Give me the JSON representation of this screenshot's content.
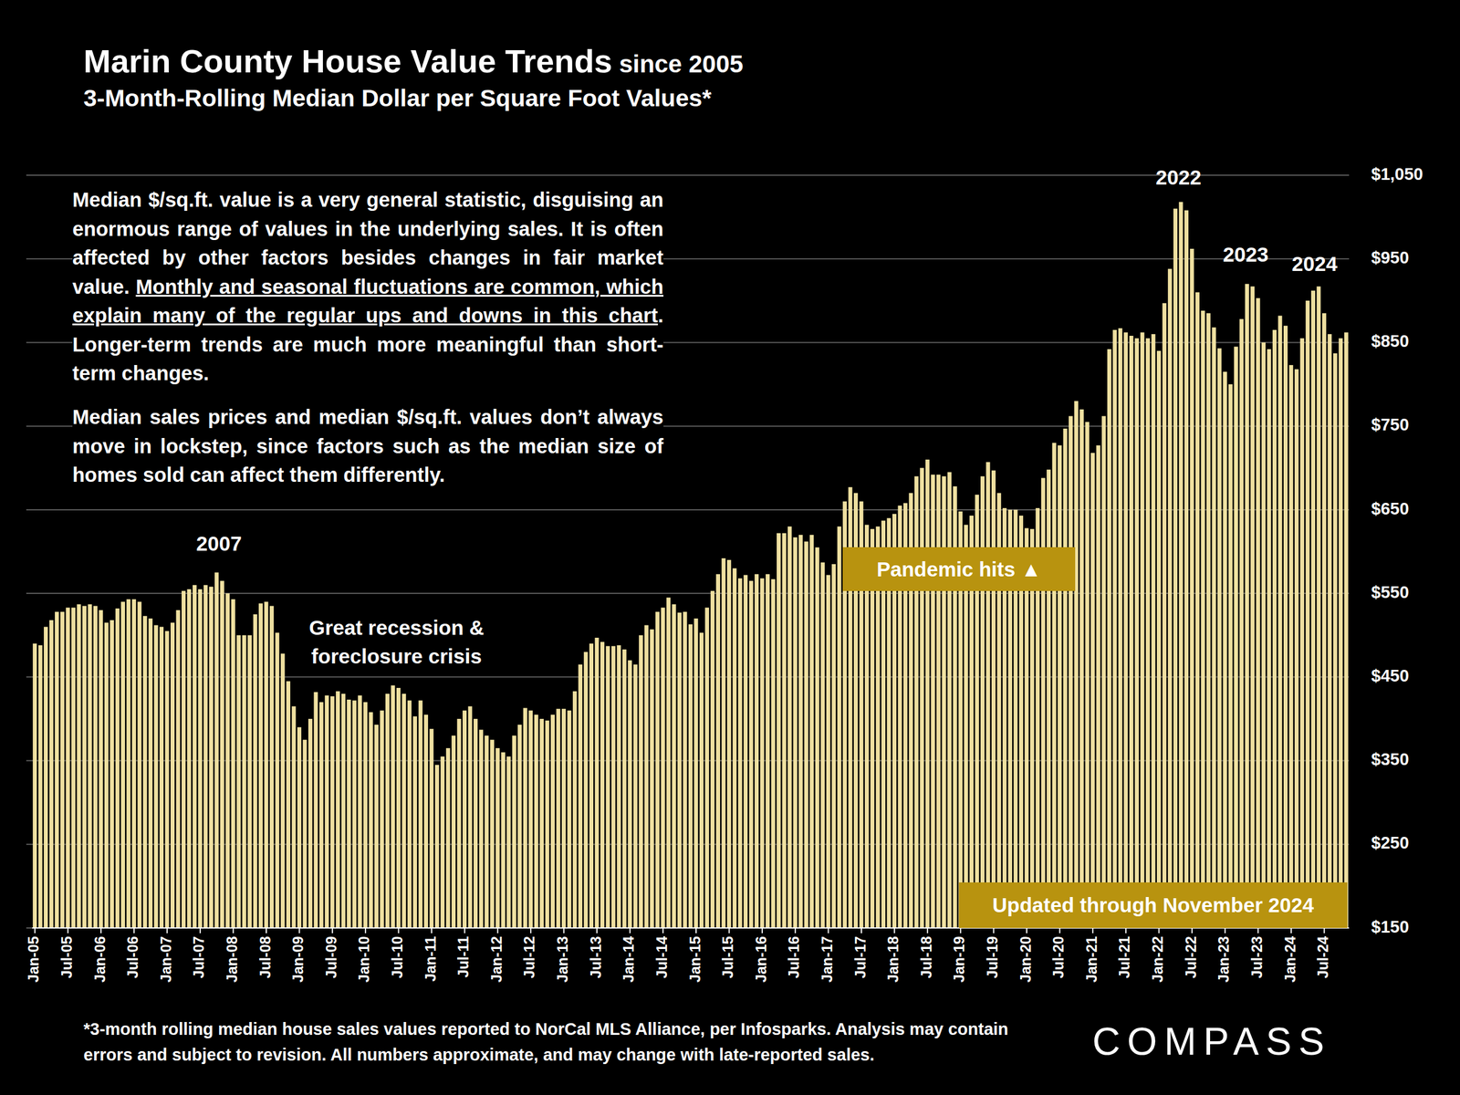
{
  "chart_data": {
    "type": "bar",
    "title": [
      "Marin County House Value Trends",
      " since 2005"
    ],
    "subtitle": "3-Month-Rolling Median Dollar per Square Foot Values*",
    "categories": [
      "Jan-05",
      null,
      null,
      null,
      null,
      null,
      "Jul-05",
      null,
      null,
      null,
      null,
      null,
      "Jan-06",
      null,
      null,
      null,
      null,
      null,
      "Jul-06",
      null,
      null,
      null,
      null,
      null,
      "Jan-07",
      null,
      null,
      null,
      null,
      null,
      "Jul-07",
      null,
      null,
      null,
      null,
      null,
      "Jan-08",
      null,
      null,
      null,
      null,
      null,
      "Jul-08",
      null,
      null,
      null,
      null,
      null,
      "Jan-09",
      null,
      null,
      null,
      null,
      null,
      "Jul-09",
      null,
      null,
      null,
      null,
      null,
      "Jan-10",
      null,
      null,
      null,
      null,
      null,
      "Jul-10",
      null,
      null,
      null,
      null,
      null,
      "Jan-11",
      null,
      null,
      null,
      null,
      null,
      "Jul-11",
      null,
      null,
      null,
      null,
      null,
      "Jan-12",
      null,
      null,
      null,
      null,
      null,
      "Jul-12",
      null,
      null,
      null,
      null,
      null,
      "Jan-13",
      null,
      null,
      null,
      null,
      null,
      "Jul-13",
      null,
      null,
      null,
      null,
      null,
      "Jan-14",
      null,
      null,
      null,
      null,
      null,
      "Jul-14",
      null,
      null,
      null,
      null,
      null,
      "Jan-15",
      null,
      null,
      null,
      null,
      null,
      "Jul-15",
      null,
      null,
      null,
      null,
      null,
      "Jan-16",
      null,
      null,
      null,
      null,
      null,
      "Jul-16",
      null,
      null,
      null,
      null,
      null,
      "Jan-17",
      null,
      null,
      null,
      null,
      null,
      "Jul-17",
      null,
      null,
      null,
      null,
      null,
      "Jan-18",
      null,
      null,
      null,
      null,
      null,
      "Jul-18",
      null,
      null,
      null,
      null,
      null,
      "Jan-19",
      null,
      null,
      null,
      null,
      null,
      "Jul-19",
      null,
      null,
      null,
      null,
      null,
      "Jan-20",
      null,
      null,
      null,
      null,
      null,
      "Jul-20",
      null,
      null,
      null,
      null,
      null,
      "Jan-21",
      null,
      null,
      null,
      null,
      null,
      "Jul-21",
      null,
      null,
      null,
      null,
      null,
      "Jan-22",
      null,
      null,
      null,
      null,
      null,
      "Jul-22",
      null,
      null,
      null,
      null,
      null,
      "Jan-23",
      null,
      null,
      null,
      null,
      null,
      "Jul-23",
      null,
      null,
      null,
      null,
      null,
      "Jan-24",
      null,
      null,
      null,
      null,
      null,
      "Jul-24",
      null,
      null,
      null,
      null
    ],
    "values": [
      490,
      488,
      510,
      518,
      528,
      528,
      533,
      533,
      537,
      535,
      537,
      535,
      530,
      515,
      518,
      532,
      540,
      543,
      543,
      540,
      523,
      520,
      512,
      510,
      505,
      515,
      530,
      553,
      555,
      560,
      555,
      560,
      558,
      575,
      565,
      550,
      543,
      500,
      500,
      500,
      525,
      538,
      540,
      535,
      503,
      478,
      445,
      415,
      390,
      375,
      400,
      432,
      420,
      428,
      427,
      433,
      430,
      423,
      422,
      428,
      420,
      408,
      393,
      410,
      430,
      440,
      437,
      430,
      422,
      403,
      422,
      405,
      388,
      345,
      355,
      365,
      380,
      400,
      410,
      415,
      400,
      387,
      380,
      375,
      365,
      360,
      355,
      380,
      393,
      413,
      410,
      405,
      400,
      398,
      405,
      412,
      412,
      410,
      433,
      465,
      480,
      490,
      497,
      492,
      487,
      487,
      488,
      483,
      470,
      465,
      500,
      512,
      507,
      528,
      533,
      545,
      537,
      527,
      528,
      513,
      520,
      503,
      533,
      553,
      573,
      592,
      590,
      580,
      568,
      572,
      565,
      573,
      568,
      573,
      567,
      622,
      622,
      630,
      617,
      620,
      612,
      620,
      605,
      587,
      572,
      585,
      630,
      660,
      677,
      670,
      660,
      632,
      627,
      630,
      637,
      640,
      645,
      655,
      658,
      670,
      690,
      700,
      710,
      692,
      692,
      690,
      695,
      678,
      648,
      632,
      643,
      668,
      690,
      707,
      697,
      670,
      652,
      650,
      650,
      643,
      628,
      627,
      652,
      688,
      698,
      730,
      727,
      747,
      762,
      780,
      770,
      755,
      718,
      727,
      762,
      842,
      865,
      867,
      862,
      858,
      855,
      862,
      855,
      860,
      840,
      897,
      938,
      1010,
      1018,
      1008,
      962,
      910,
      888,
      885,
      868,
      843,
      815,
      800,
      845,
      878,
      920,
      917,
      903,
      850,
      842,
      865,
      882,
      870,
      823,
      818,
      855,
      900,
      912,
      917,
      885,
      860,
      837,
      855,
      862
    ],
    "color": "#efe0a0",
    "ylim": [
      150,
      1050
    ],
    "yticks": [
      {
        "value": 150,
        "label": "$150"
      },
      {
        "value": 250,
        "label": "$250"
      },
      {
        "value": 350,
        "label": "$350"
      },
      {
        "value": 450,
        "label": "$450"
      },
      {
        "value": 550,
        "label": "$550"
      },
      {
        "value": 650,
        "label": "$650"
      },
      {
        "value": 750,
        "label": "$750"
      },
      {
        "value": 850,
        "label": "$850"
      },
      {
        "value": 950,
        "label": "$950"
      },
      {
        "value": 1050,
        "label": "$1,050"
      }
    ],
    "grid": true,
    "notes": [
      [
        "Median $/sq.ft. value is a very general statistic, disguising an enormous range of values in the underlying sales. It is often affected by other factors besides changes in fair market value. ",
        "Monthly and seasonal fluctuations are common, which explain many of the regular ups and downs in this chart",
        ". Longer-term trends are much more meaningful than short-term changes."
      ],
      [
        "Median sales prices and median $/sq.ft. values don’t always move in lockstep, since factors such as the median size of homes sold can affect them differently."
      ]
    ],
    "annotations": [
      "2007",
      "2022",
      "2023",
      "2024",
      "Great recession & foreclosure crisis",
      "Pandemic hits ▲",
      "Updated through November 2024"
    ],
    "footnote": "*3-month rolling median house sales values reported to NorCal MLS Alliance, per Infosparks. Analysis may contain errors and subject to revision. All numbers approximate, and may change with late-reported sales.",
    "logo": "COMPASS"
  }
}
